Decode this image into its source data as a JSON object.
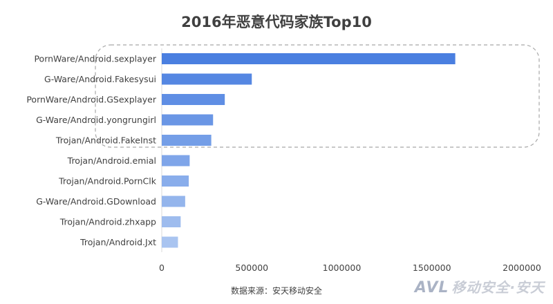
{
  "chart_data": {
    "type": "bar",
    "orientation": "horizontal",
    "title": "2016年恶意代码家族Top10",
    "categories": [
      "PornWare/Android.sexplayer",
      "G-Ware/Android.Fakesysui",
      "PornWare/Android.GSexplayer",
      "G-Ware/Android.yongrungirl",
      "Trojan/Android.FakeInst",
      "Trojan/Android.emial",
      "Trojan/Android.PornClk",
      "G-Ware/Android.GDownload",
      "Trojan/Android.zhxapp",
      "Trojan/Android.Jxt"
    ],
    "values": [
      1630000,
      500000,
      350000,
      285000,
      275000,
      155000,
      150000,
      130000,
      105000,
      90000
    ],
    "xlim": [
      0,
      2000000
    ],
    "xticks": [
      "0",
      "500000",
      "1000000",
      "1500000",
      "2000000"
    ],
    "highlight_top": 5,
    "grid": false,
    "legend": "none",
    "colors": {
      "bar_start": "#4a7fe0",
      "bar_end": "#a9c4f0",
      "highlight_border": "#a6a6a6"
    }
  },
  "source": "数据来源：安天移动安全",
  "watermark": "AVL 移动安全·安天"
}
